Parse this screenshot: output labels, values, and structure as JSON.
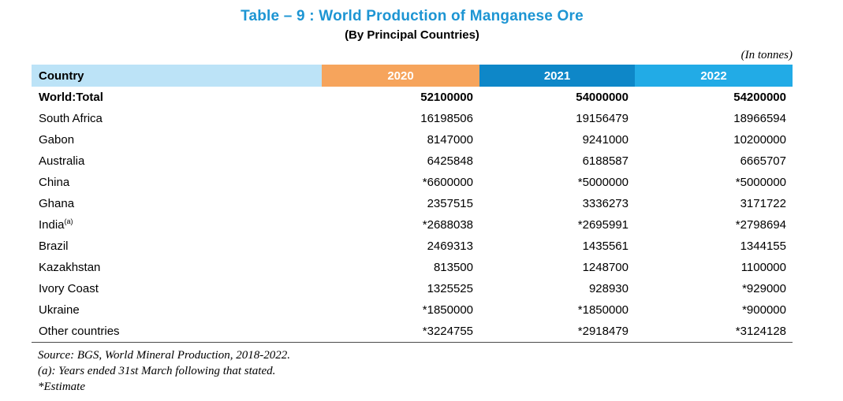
{
  "title": "Table – 9 : World Production of Manganese Ore",
  "subtitle": "(By Principal Countries)",
  "unit_note": "(In tonnes)",
  "colors": {
    "title_text": "#1D95D3",
    "header_country_bg": "#BCE3F7",
    "header_2020_bg": "#F6A45C",
    "header_2021_bg": "#0E87C8",
    "header_2022_bg": "#22ABE6",
    "header_year_text": "#FFFFFF",
    "table_bottom_rule": "#4A4A4A"
  },
  "table": {
    "columns": [
      "Country",
      "2020",
      "2021",
      "2022"
    ],
    "rows": [
      {
        "country": "World:Total",
        "bold": true,
        "v2020": "52100000",
        "v2021": "54000000",
        "v2022": "54200000"
      },
      {
        "country": "South Africa",
        "v2020": "16198506",
        "v2021": "19156479",
        "v2022": "18966594"
      },
      {
        "country": "Gabon",
        "v2020": "8147000",
        "v2021": "9241000",
        "v2022": "10200000"
      },
      {
        "country": "Australia",
        "v2020": "6425848",
        "v2021": "6188587",
        "v2022": "6665707"
      },
      {
        "country": "China",
        "v2020": "*6600000",
        "v2021": "*5000000",
        "v2022": "*5000000"
      },
      {
        "country": "Ghana",
        "v2020": "2357515",
        "v2021": "3336273",
        "v2022": "3171722"
      },
      {
        "country": "India",
        "superscript": "(a)",
        "v2020": "*2688038",
        "v2021": "*2695991",
        "v2022": "*2798694"
      },
      {
        "country": "Brazil",
        "v2020": "2469313",
        "v2021": "1435561",
        "v2022": "1344155"
      },
      {
        "country": "Kazakhstan",
        "v2020": "813500",
        "v2021": "1248700",
        "v2022": "1100000"
      },
      {
        "country": "Ivory Coast",
        "v2020": "1325525",
        "v2021": "928930",
        "v2022": "*929000"
      },
      {
        "country": "Ukraine",
        "v2020": "*1850000",
        "v2021": "*1850000",
        "v2022": "*900000"
      },
      {
        "country": "Other countries",
        "v2020": "*3224755",
        "v2021": "*2918479",
        "v2022": "*3124128"
      }
    ]
  },
  "footnotes": [
    "Source: BGS, World Mineral Production, 2018-2022.",
    "(a): Years ended 31st March following that stated.",
    "*Estimate"
  ],
  "chart_data": {
    "type": "table",
    "title": "Table – 9 : World Production of Manganese Ore (By Principal Countries)",
    "unit": "tonnes",
    "categories": [
      "World:Total",
      "South Africa",
      "Gabon",
      "Australia",
      "China",
      "Ghana",
      "India",
      "Brazil",
      "Kazakhstan",
      "Ivory Coast",
      "Ukraine",
      "Other countries"
    ],
    "series": [
      {
        "name": "2020",
        "values": [
          "52100000",
          "16198506",
          "8147000",
          "6425848",
          "*6600000",
          "2357515",
          "*2688038",
          "2469313",
          "813500",
          "1325525",
          "*1850000",
          "*3224755"
        ]
      },
      {
        "name": "2021",
        "values": [
          "54000000",
          "19156479",
          "9241000",
          "6188587",
          "*5000000",
          "3336273",
          "*2695991",
          "1435561",
          "1248700",
          "928930",
          "*1850000",
          "*2918479"
        ]
      },
      {
        "name": "2022",
        "values": [
          "54200000",
          "18966594",
          "10200000",
          "6665707",
          "*5000000",
          "3171722",
          "*2798694",
          "1344155",
          "1100000",
          "*929000",
          "*900000",
          "*3124128"
        ]
      }
    ],
    "annotations": [
      "* = Estimate",
      "(a) = Years ended 31st March following that stated"
    ]
  }
}
